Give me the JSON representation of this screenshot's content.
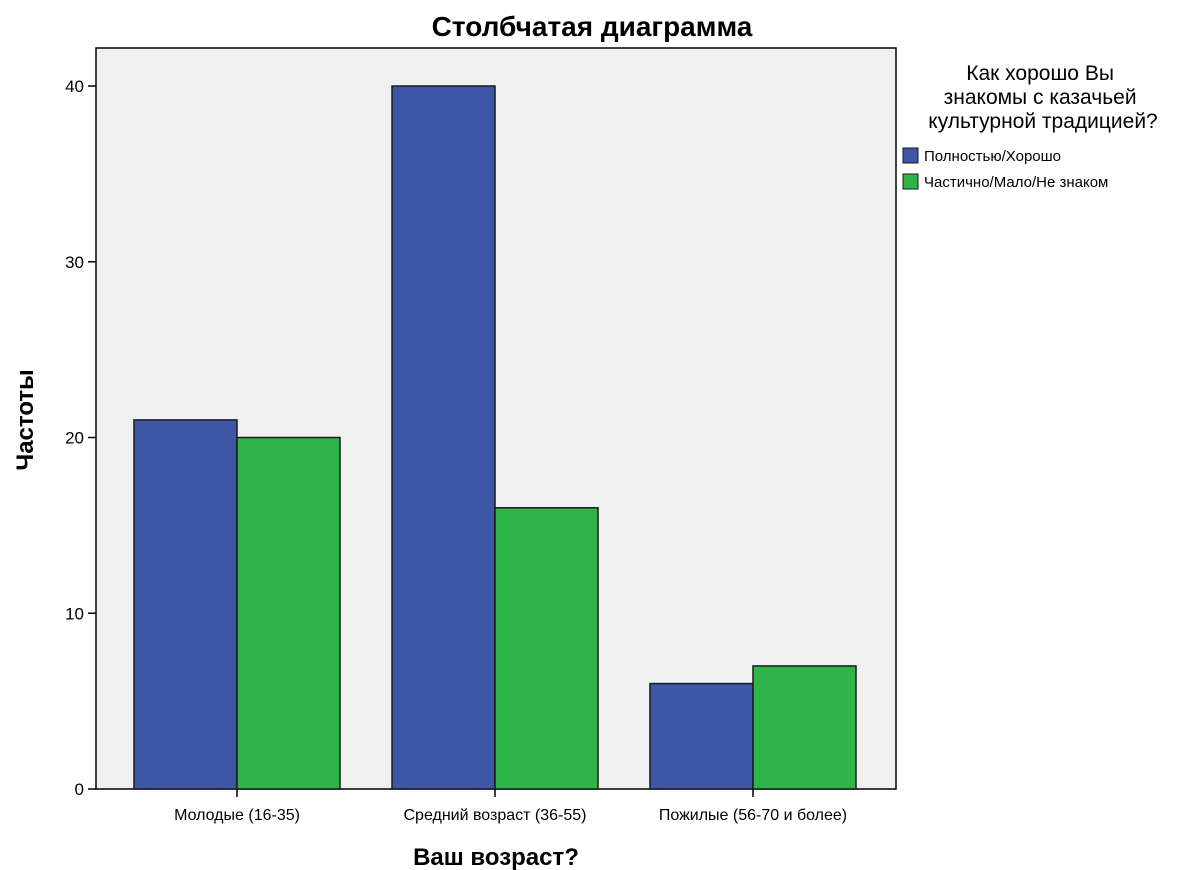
{
  "chart_data": {
    "type": "bar",
    "title": "Столбчатая диаграмма",
    "xlabel": "Ваш возраст?",
    "ylabel": "Частоты",
    "ylim": [
      0,
      42
    ],
    "yticks": [
      0,
      10,
      20,
      30,
      40
    ],
    "grid": false,
    "legend_position": "right",
    "legend_title": [
      "Как хорошо Вы",
      "знакомы с казачьей",
      "культурной традицией?"
    ],
    "categories": [
      "Молодые (16-35)",
      "Средний возраст (36-55)",
      "Пожилые (56-70 и более)"
    ],
    "series": [
      {
        "name": "Полностью/Хорошо",
        "color": "#3d56a6",
        "values": [
          21,
          40,
          6
        ]
      },
      {
        "name": "Частично/Мало/Не знаком",
        "color": "#2fb44a",
        "values": [
          20,
          16,
          7
        ]
      }
    ],
    "plot_background": "#f0f0f0"
  }
}
